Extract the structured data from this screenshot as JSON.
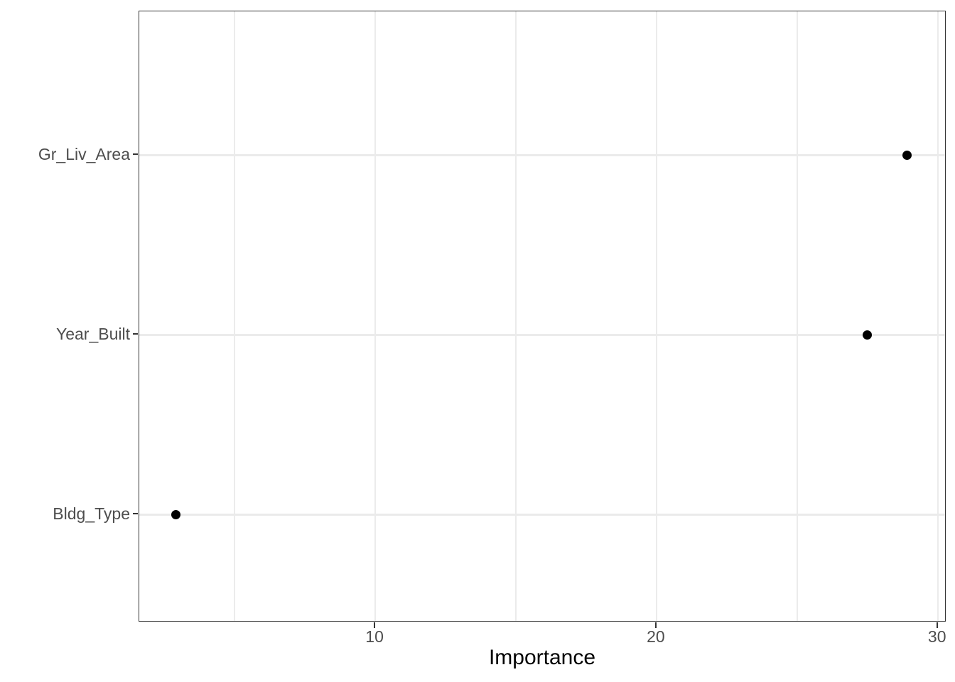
{
  "chart_data": {
    "type": "scatter",
    "variant": "horizontal-dot-plot",
    "title": "",
    "xlabel": "Importance",
    "ylabel": "",
    "categories": [
      "Gr_Liv_Area",
      "Year_Built",
      "Bldg_Type"
    ],
    "values": [
      28.9,
      27.5,
      2.9
    ],
    "xlim": [
      1.61,
      30.31
    ],
    "x_major_ticks": [
      10,
      20,
      30
    ],
    "x_minor_gridlines": [
      5,
      15,
      25
    ],
    "grid": "on",
    "legend": "none",
    "colors": {
      "point": "#000000",
      "gridline": "#ebebeb",
      "panel_border": "#333333",
      "tick_label": "#4d4d4d",
      "axis_title": "#000000",
      "background": "#ffffff"
    }
  }
}
